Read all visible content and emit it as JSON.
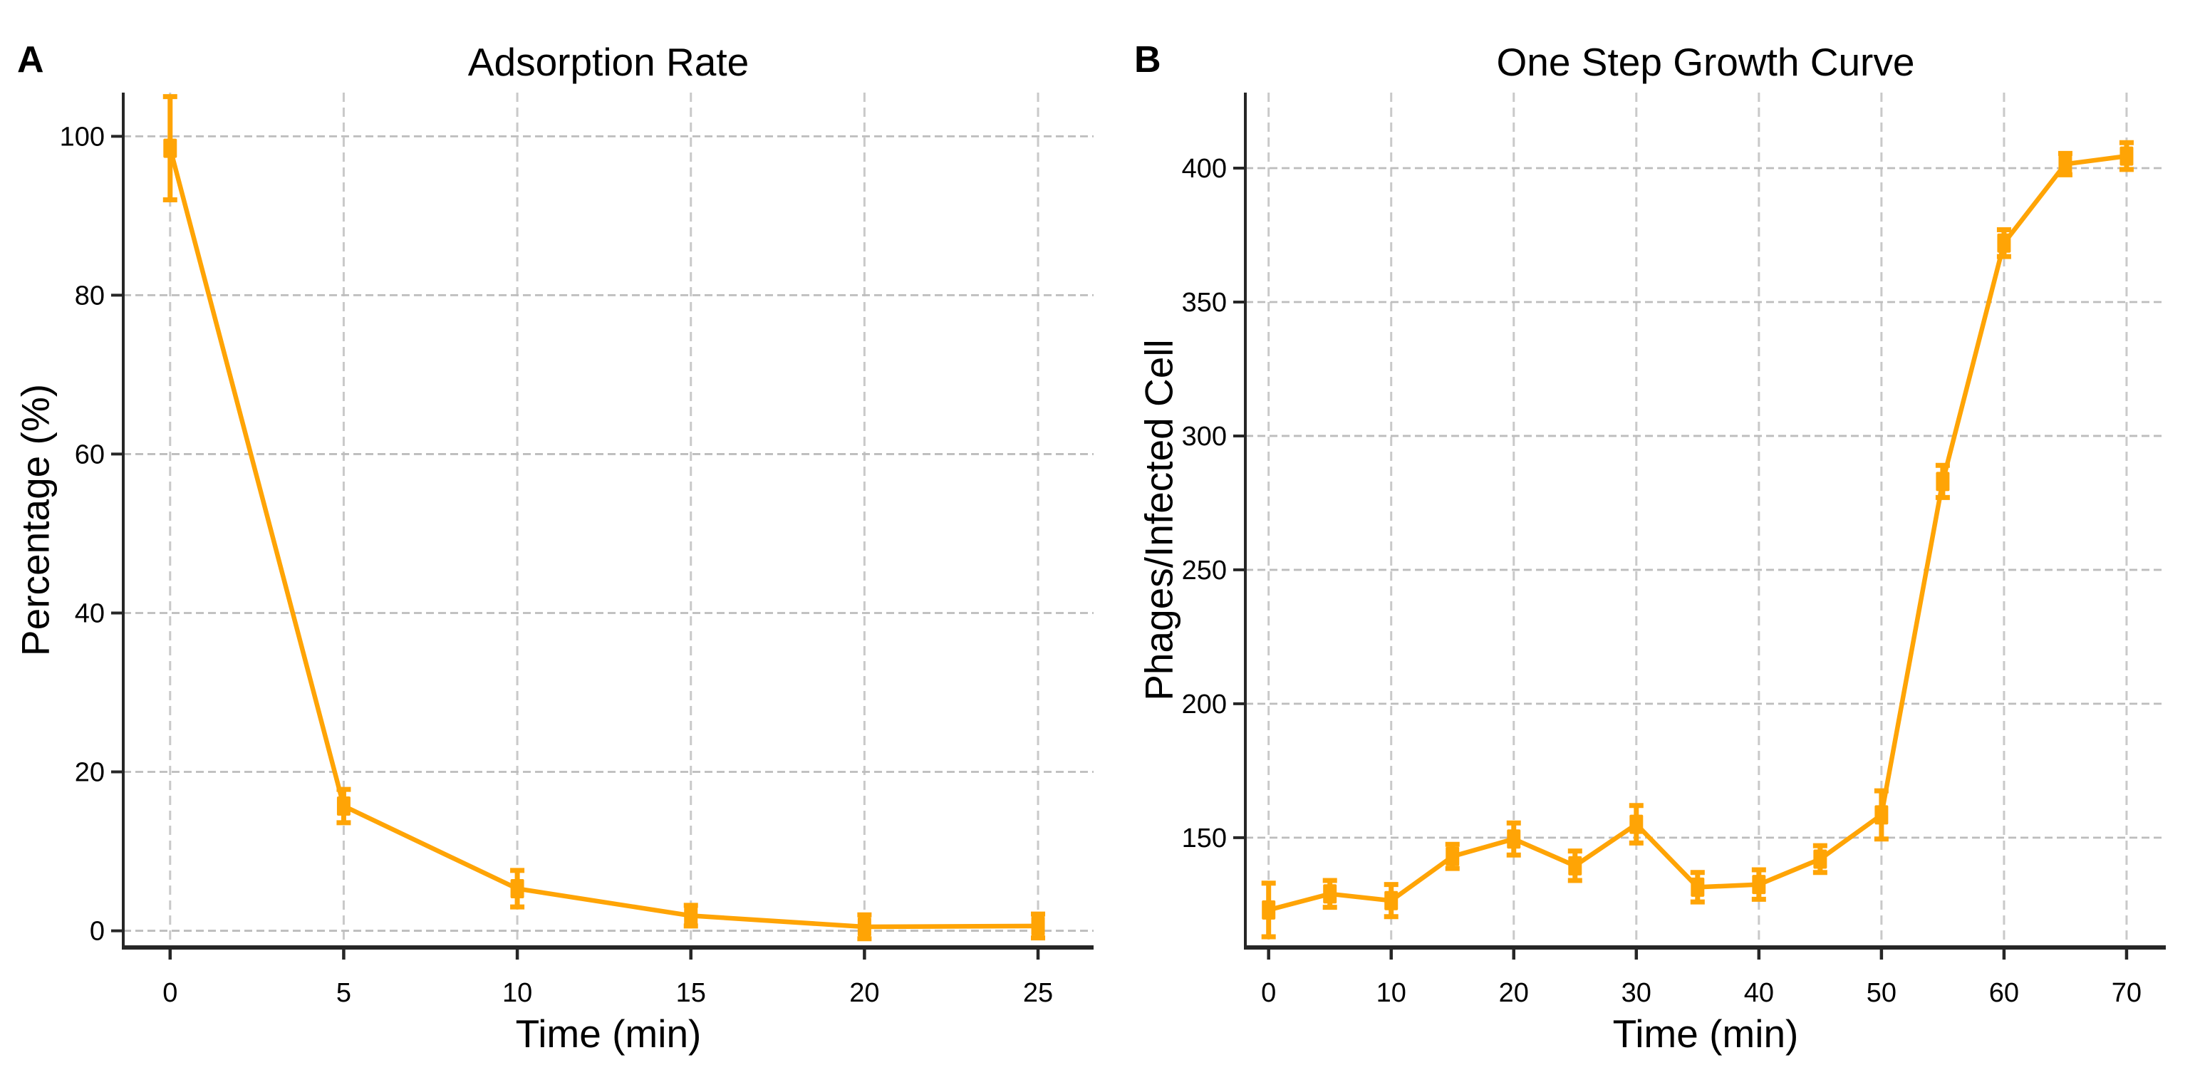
{
  "figure": {
    "background": "#ffffff",
    "accent_color": "#FFA405",
    "grid_color_vertical": "#c9c9c9",
    "grid_color_horizontal": "#bdbdbd",
    "spine_color": "#262626",
    "text_color": "#000000"
  },
  "panels": [
    {
      "letter": "A",
      "title": "Adsorption Rate",
      "xlabel": "Time (min)",
      "ylabel": "Percentage (%)"
    },
    {
      "letter": "B",
      "title": "One Step Growth Curve",
      "xlabel": "Time (min)",
      "ylabel": "Phages/Infected Cell"
    }
  ],
  "chart_data": [
    {
      "type": "line",
      "title": "Adsorption Rate",
      "xlabel": "Time (min)",
      "ylabel": "Percentage (%)",
      "legend": false,
      "grid": true,
      "line_color": "#FFA405",
      "marker": "square",
      "error_bars": true,
      "xticks": [
        0,
        5,
        10,
        15,
        20,
        25
      ],
      "yticks": [
        0,
        20,
        40,
        60,
        80,
        100
      ],
      "xlim": [
        -1.35,
        26.6
      ],
      "ylim": [
        -2.1,
        105.5
      ],
      "series": [
        {
          "name": "adsorption",
          "x": [
            0,
            5,
            10,
            15,
            20,
            25
          ],
          "y": [
            98.5,
            15.7,
            5.3,
            1.9,
            0.5,
            0.6
          ],
          "yerr": [
            6.5,
            2.1,
            2.3,
            1.3,
            1.5,
            1.5
          ]
        }
      ]
    },
    {
      "type": "line",
      "title": "One Step Growth Curve",
      "xlabel": "Time (min)",
      "ylabel": "Phages/Infected Cell",
      "legend": false,
      "grid": true,
      "line_color": "#FFA405",
      "marker": "square",
      "error_bars": true,
      "xticks": [
        0,
        10,
        20,
        30,
        40,
        50,
        60,
        70
      ],
      "yticks": [
        150,
        200,
        250,
        300,
        350,
        400
      ],
      "xlim": [
        -1.9,
        73.2
      ],
      "ylim": [
        109,
        428.2
      ],
      "series": [
        {
          "name": "one_step_growth",
          "x": [
            0,
            5,
            10,
            15,
            20,
            25,
            30,
            35,
            40,
            45,
            50,
            55,
            60,
            65,
            70
          ],
          "y": [
            123,
            129,
            126.5,
            143,
            149.5,
            139.5,
            155,
            131.5,
            132.5,
            142,
            158.5,
            283,
            372,
            401.5,
            404.5
          ],
          "yerr": [
            10,
            5,
            6,
            4.5,
            6,
            5.5,
            7,
            5.5,
            5.5,
            5,
            9,
            6,
            5,
            4,
            5
          ]
        }
      ]
    }
  ]
}
